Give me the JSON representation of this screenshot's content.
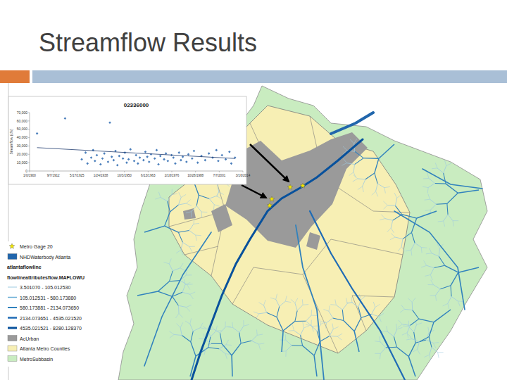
{
  "slide": {
    "title": "Streamflow Results"
  },
  "chart_data": {
    "type": "scatter",
    "title": "02336000",
    "y_label": "Streamflow (cfs)",
    "xlim": [
      0,
      41715
    ],
    "xticks": [
      {
        "value": 0,
        "label": "1/0/1900"
      },
      {
        "value": 4635,
        "label": "9/7/1912"
      },
      {
        "value": 9270,
        "label": "5/17/1925"
      },
      {
        "value": 13905,
        "label": "1/24/1938"
      },
      {
        "value": 18540,
        "label": "10/3/1950"
      },
      {
        "value": 23175,
        "label": "6/13/1963"
      },
      {
        "value": 27810,
        "label": "2/18/1976"
      },
      {
        "value": 32445,
        "label": "10/28/1988"
      },
      {
        "value": 37080,
        "label": "7/7/2001"
      },
      {
        "value": 41715,
        "label": "3/16/2014"
      }
    ],
    "ylim": [
      0,
      70000
    ],
    "yticks": [
      0,
      {
        "value": 10000,
        "label": "10,000"
      },
      {
        "value": 20000,
        "label": "20,000"
      },
      {
        "value": 30000,
        "label": "30,000"
      },
      {
        "value": 40000,
        "label": "40,000"
      },
      {
        "value": 50000,
        "label": "50,000"
      },
      {
        "value": 60000,
        "label": "60,000"
      },
      {
        "value": 70000,
        "label": "70,000"
      }
    ],
    "grid": false,
    "series": [
      {
        "type": "scatter",
        "marker": "diamond",
        "color": "#4a7ebb",
        "x": [
          1461,
          6940,
          10200,
          10950,
          11320,
          12050,
          12420,
          12780,
          13150,
          13880,
          14250,
          14610,
          15340,
          15700,
          16070,
          16440,
          16800,
          17170,
          17530,
          18260,
          18630,
          18990,
          19360,
          19720,
          20450,
          20820,
          21180,
          21550,
          22280,
          22640,
          23010,
          23370,
          23740,
          24470,
          24840,
          25200,
          25570,
          26300,
          26660,
          27030,
          27760,
          28120,
          28490,
          29220,
          29590,
          29950,
          30680,
          31050,
          31780,
          32140,
          32870,
          33600,
          34330,
          35060,
          35790,
          36520,
          36890,
          37620,
          38350,
          39080,
          39440,
          40170
        ],
        "values": [
          45000,
          63000,
          14000,
          22000,
          9000,
          16000,
          25000,
          12000,
          19000,
          8000,
          15000,
          21000,
          11000,
          58000,
          17000,
          13000,
          24000,
          7000,
          18000,
          15000,
          22000,
          10000,
          14000,
          26000,
          12000,
          19000,
          9000,
          16000,
          13000,
          23000,
          17000,
          11000,
          20000,
          15000,
          25000,
          8000,
          18000,
          14000,
          21000,
          12000,
          19000,
          16000,
          9000,
          22000,
          13000,
          17000,
          11000,
          20000,
          15000,
          24000,
          10000,
          18000,
          13000,
          21000,
          16000,
          25000,
          12000,
          19000,
          14000,
          23000,
          9000,
          16000
        ]
      },
      {
        "type": "line",
        "line_style": "solid",
        "color": "#1f3b6e",
        "x": [
          1461,
          40170
        ],
        "values": [
          28000,
          15000
        ]
      }
    ]
  },
  "map": {
    "legend": [
      {
        "label": "Metro Gage 20",
        "marker": "star",
        "color": "#f2e600"
      },
      {
        "label": "NHDWaterbody Atlanta",
        "marker": "patch",
        "color": "#2166ac"
      },
      {
        "label": "atlantaflowline",
        "marker": "none"
      },
      {
        "label": "flowlineattributesflow.MAFLOWU",
        "marker": "none"
      },
      {
        "label": "3.501070 - 105.012530",
        "marker": "line",
        "color": "#9ecae1"
      },
      {
        "label": "105.012531 - 580.173880",
        "marker": "line",
        "color": "#6baed6"
      },
      {
        "label": "580.173881 - 2134.073650",
        "marker": "line",
        "color": "#3182bd"
      },
      {
        "label": "2134.073651 - 4535.021520",
        "marker": "line",
        "color": "#1f6bb5"
      },
      {
        "label": "4535.021521 - 8280.128370",
        "marker": "line",
        "color": "#08519c"
      },
      {
        "label": "AcUrban",
        "marker": "patch",
        "color": "#9a9a9a"
      },
      {
        "label": "Atlanta Metro Counties",
        "marker": "patch",
        "color": "#f7efb4"
      },
      {
        "label": "MetroSubbasin",
        "marker": "patch",
        "color": "#c9ecc0"
      }
    ]
  }
}
